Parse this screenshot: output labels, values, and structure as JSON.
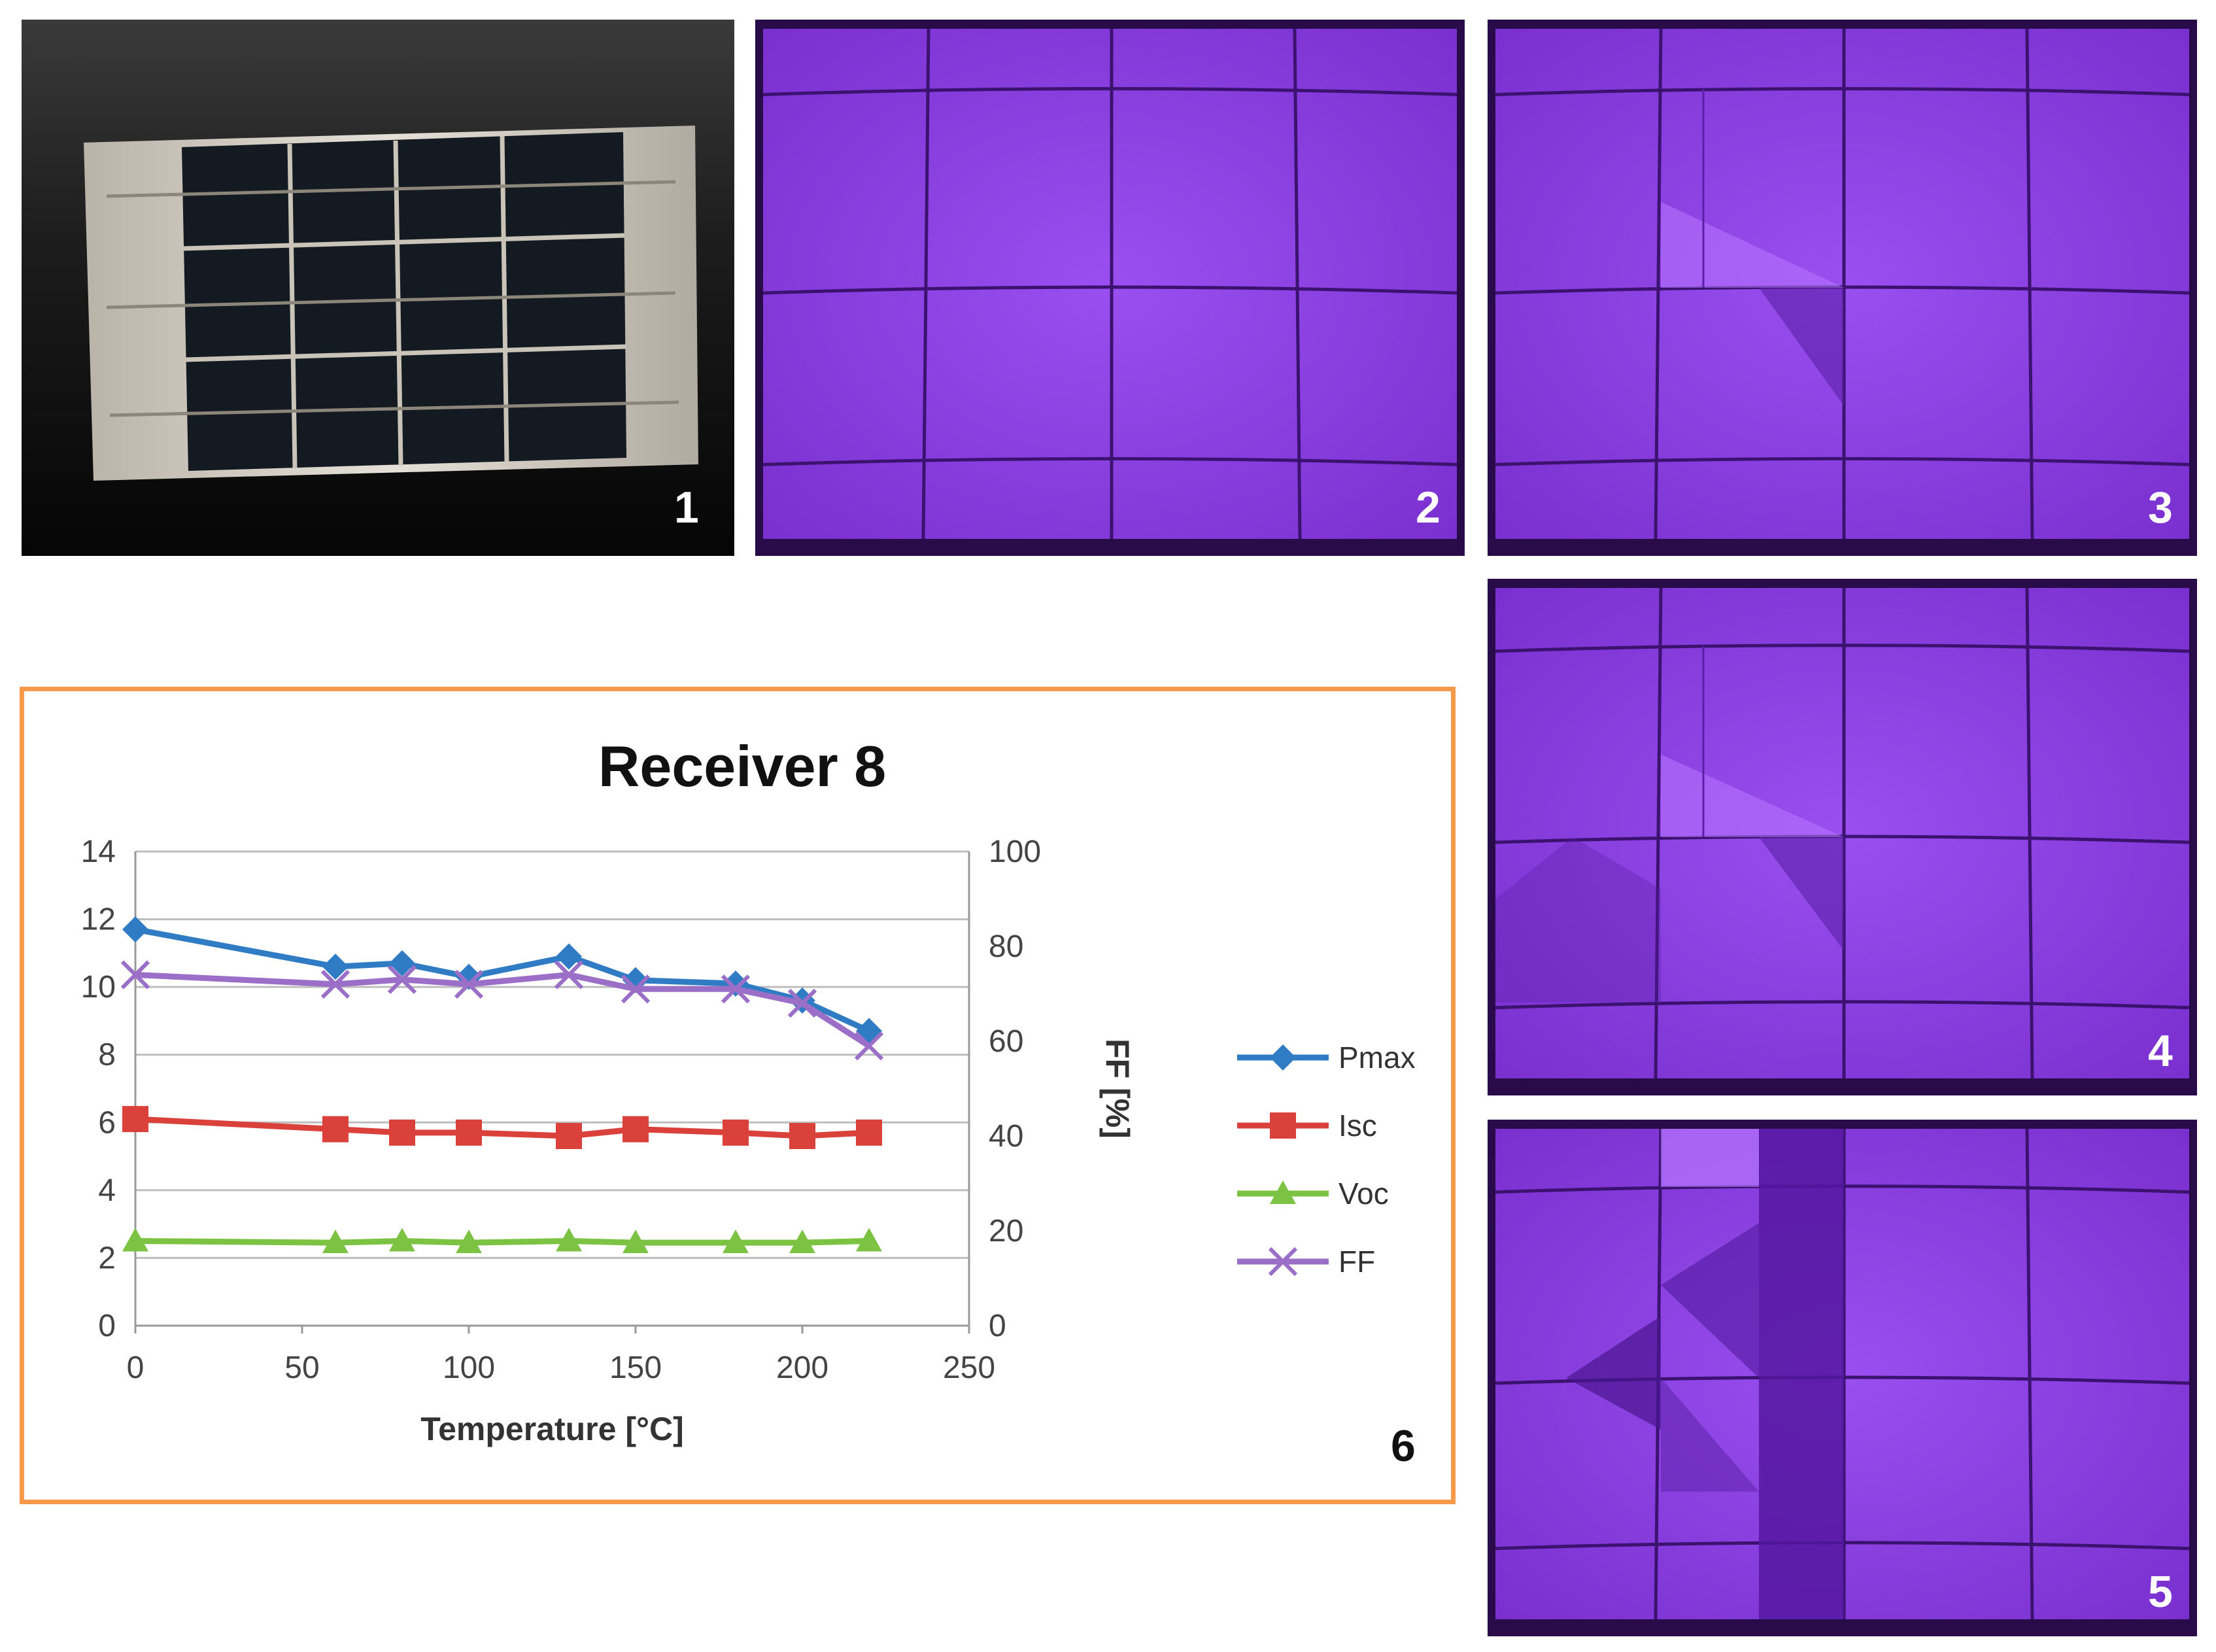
{
  "panels": [
    {
      "label": "1",
      "kind": "photo"
    },
    {
      "label": "2",
      "kind": "el-image"
    },
    {
      "label": "3",
      "kind": "el-image"
    },
    {
      "label": "4",
      "kind": "el-image"
    },
    {
      "label": "5",
      "kind": "el-image"
    },
    {
      "label": "6",
      "kind": "chart"
    }
  ],
  "colors": {
    "frame": "#f59a4a",
    "el_purple": "#8e3fe0",
    "Pmax": "#2f7cc4",
    "Isc": "#d9413a",
    "Voc": "#7cc343",
    "FF": "#9b6fc8"
  },
  "chart_data": {
    "type": "line",
    "title": "Receiver 8",
    "xlabel": "Temperature [°C]",
    "ylabel": "",
    "y2label": "FF [%]",
    "xlim": [
      0,
      250
    ],
    "ylim": [
      0,
      14
    ],
    "y2lim": [
      0,
      100
    ],
    "xticks": [
      "0",
      "50",
      "100",
      "150",
      "200",
      "250"
    ],
    "yticks": [
      "0",
      "2",
      "4",
      "6",
      "8",
      "10",
      "12",
      "14"
    ],
    "y2ticks": [
      "0",
      "20",
      "40",
      "60",
      "80",
      "100"
    ],
    "grid": "horizontal",
    "legend_position": "right",
    "series": [
      {
        "name": "Pmax",
        "axis": "left",
        "marker": "diamond",
        "x": [
          0,
          60,
          80,
          100,
          130,
          150,
          180,
          200,
          220
        ],
        "y": [
          11.7,
          10.6,
          10.7,
          10.3,
          10.9,
          10.2,
          10.1,
          9.6,
          8.7
        ]
      },
      {
        "name": "Isc",
        "axis": "left",
        "marker": "square",
        "x": [
          0,
          60,
          80,
          100,
          130,
          150,
          180,
          200,
          220
        ],
        "y": [
          6.1,
          5.8,
          5.7,
          5.7,
          5.6,
          5.8,
          5.7,
          5.6,
          5.7
        ]
      },
      {
        "name": "Voc",
        "axis": "left",
        "marker": "triangle",
        "x": [
          0,
          60,
          80,
          100,
          130,
          150,
          180,
          200,
          220
        ],
        "y": [
          2.5,
          2.45,
          2.5,
          2.45,
          2.5,
          2.45,
          2.45,
          2.45,
          2.5
        ]
      },
      {
        "name": "FF",
        "axis": "right",
        "marker": "x",
        "x": [
          0,
          60,
          80,
          100,
          130,
          150,
          180,
          200,
          220
        ],
        "y": [
          74,
          72,
          73,
          72,
          74,
          71,
          71,
          68,
          59
        ]
      }
    ]
  }
}
